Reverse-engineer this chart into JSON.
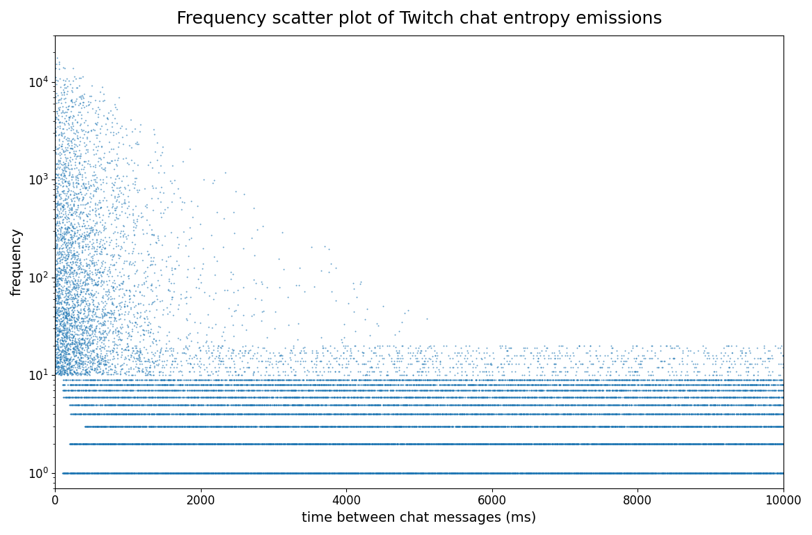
{
  "title": "Frequency scatter plot of Twitch chat entropy emissions",
  "xlabel": "time between chat messages (ms)",
  "ylabel": "frequency",
  "xlim": [
    0,
    10000
  ],
  "ylim_bottom": 0.7,
  "ylim_top": 30000,
  "dot_color": "#1f77b4",
  "dot_size": 2.0,
  "dot_alpha": 0.7,
  "title_fontsize": 18,
  "label_fontsize": 14,
  "tick_fontsize": 12,
  "seed": 99,
  "x_max": 10000,
  "lambda_main": 0.0012,
  "A_main": 20000,
  "n_main": 12000,
  "n_uniform_extra": 3000,
  "sigma_log": 1.2
}
